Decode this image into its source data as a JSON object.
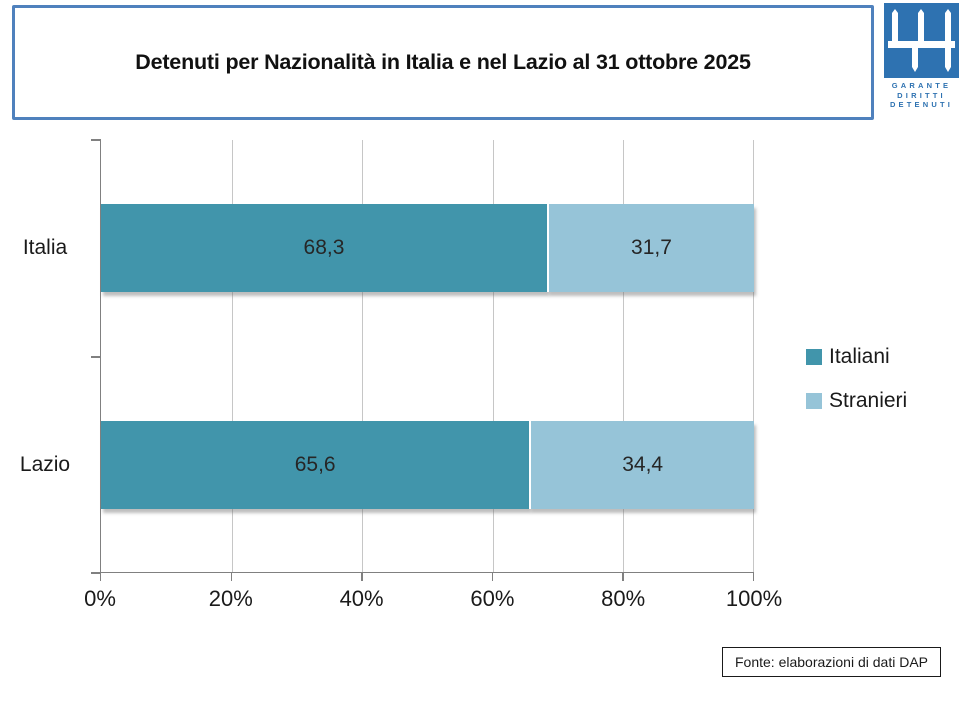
{
  "slide": {
    "title": "Detenuti per Nazionalità in Italia e nel Lazio al 31 ottobre 2025",
    "source_note": "Fonte: elaborazioni di dati DAP"
  },
  "logo": {
    "caption_lines": [
      "GARANTE",
      "DIRITTI",
      "DETENUTI"
    ],
    "square_color": "#2E72B1"
  },
  "chart_data": {
    "type": "bar",
    "orientation": "horizontal",
    "stacked": true,
    "title": "Detenuti per Nazionalità in Italia e nel Lazio al 31 ottobre 2025",
    "categories": [
      "Italia",
      "Lazio"
    ],
    "series": [
      {
        "name": "Italiani",
        "color": "#4195AB",
        "values": [
          68.3,
          65.6
        ],
        "labels": [
          "68,3",
          "65,6"
        ]
      },
      {
        "name": "Stranieri",
        "color": "#96C4D8",
        "values": [
          31.7,
          34.4
        ],
        "labels": [
          "31,7",
          "34,4"
        ]
      }
    ],
    "x_axis": {
      "min": 0,
      "max": 100,
      "tick_labels": [
        "0%",
        "20%",
        "40%",
        "60%",
        "80%",
        "100%"
      ],
      "grid": true
    },
    "legend_position": "right"
  }
}
